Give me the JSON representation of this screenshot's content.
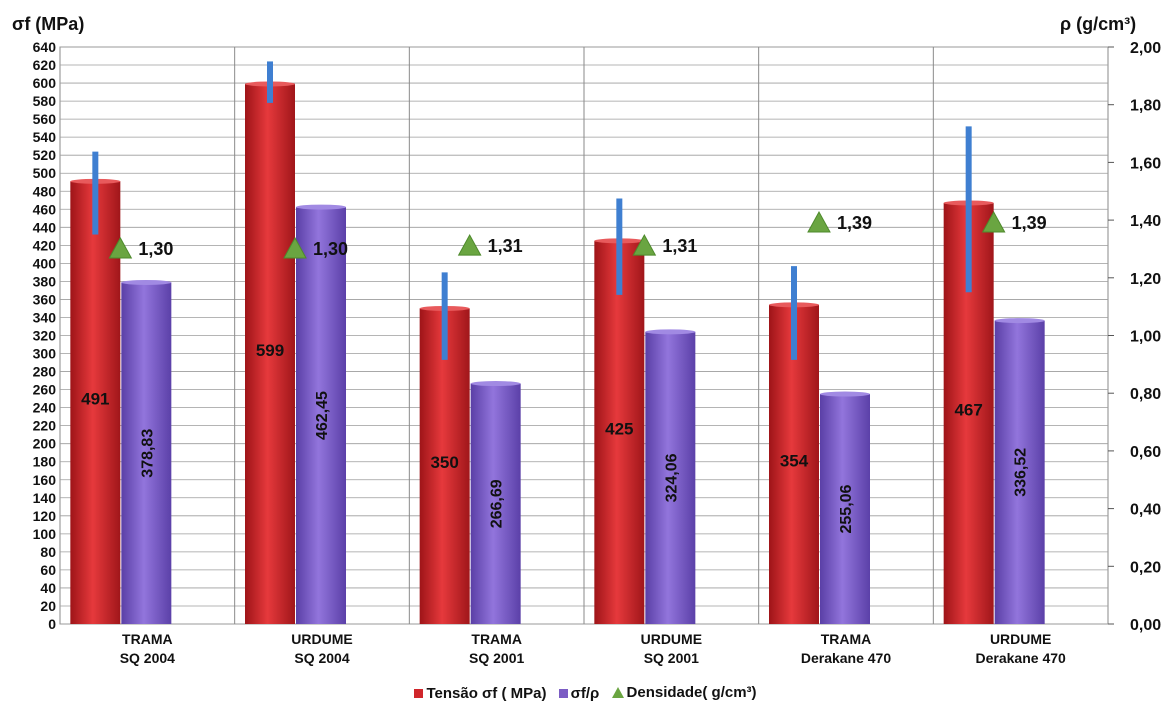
{
  "chart_data": {
    "type": "bar",
    "title": "",
    "y_left_label": "σf (MPa)",
    "y_right_label": "ρ (g/cm³)",
    "y_left_range": [
      0,
      640
    ],
    "y_left_tick_step": 20,
    "y_right_range": [
      0,
      2.0
    ],
    "y_right_ticks": [
      "0,00",
      "0,20",
      "0,40",
      "0,60",
      "0,80",
      "1,00",
      "1,20",
      "1,40",
      "1,60",
      "1,80",
      "2,00"
    ],
    "grid": true,
    "legend_position": "bottom",
    "categories": [
      [
        "TRAMA",
        "SQ 2004"
      ],
      [
        "URDUME",
        "SQ 2004"
      ],
      [
        "TRAMA",
        "SQ 2001"
      ],
      [
        "URDUME",
        "SQ 2001"
      ],
      [
        "TRAMA",
        "Derakane 470"
      ],
      [
        "URDUME",
        "Derakane 470"
      ]
    ],
    "series": [
      {
        "name": "Tensão σf ( MPa)",
        "axis": "left",
        "color": "#d0262b",
        "values": [
          491,
          599,
          350,
          425,
          354,
          467
        ],
        "labels": [
          "491",
          "599",
          "350",
          "425",
          "354",
          "467"
        ],
        "error_low": [
          432,
          578,
          293,
          365,
          293,
          368
        ],
        "error_high": [
          524,
          624,
          390,
          472,
          397,
          552
        ]
      },
      {
        "name": "σf/ρ",
        "axis": "left",
        "color": "#7b5cc4",
        "values": [
          378.83,
          462.45,
          266.69,
          324.06,
          255.06,
          336.52
        ],
        "labels": [
          "378,83",
          "462,45",
          "266,69",
          "324,06",
          "255,06",
          "336,52"
        ]
      },
      {
        "name": "Densidade( g/cm³)",
        "axis": "right",
        "color": "#6aa541",
        "values": [
          1.3,
          1.3,
          1.31,
          1.31,
          1.39,
          1.39
        ],
        "labels": [
          "1,30",
          "1,30",
          "1,31",
          "1,31",
          "1,39",
          "1,39"
        ]
      }
    ]
  }
}
